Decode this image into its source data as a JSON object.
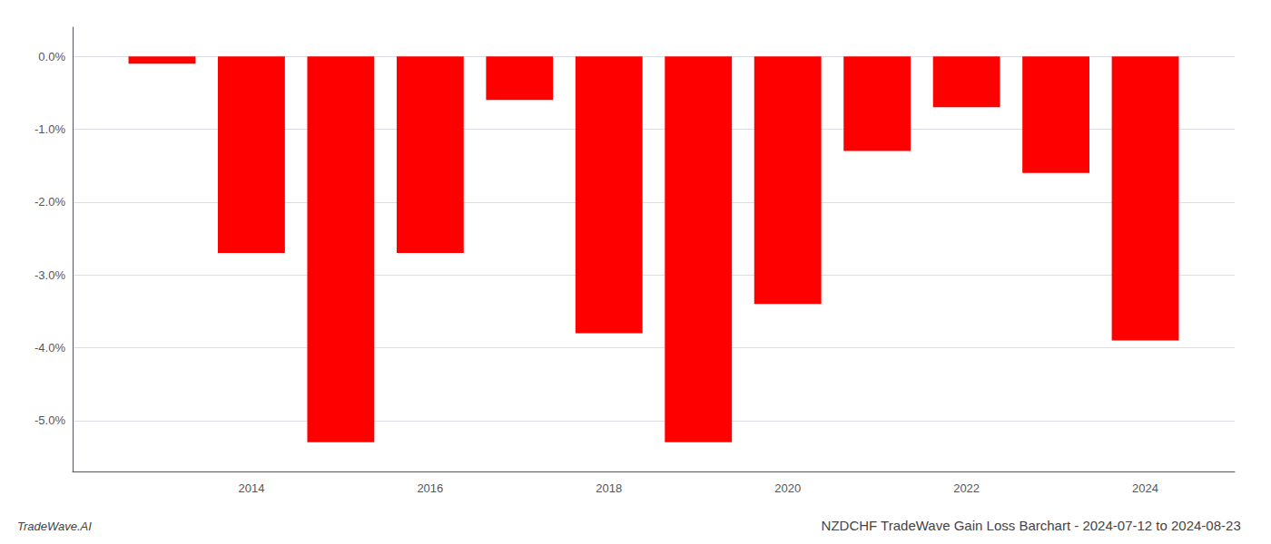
{
  "chart_data": {
    "type": "bar",
    "title": "NZDCHF TradeWave Gain Loss Barchart - 2024-07-12 to 2024-08-23",
    "annotations": [
      "TradeWave.AI"
    ],
    "x": [
      2013,
      2014,
      2015,
      2016,
      2017,
      2018,
      2019,
      2020,
      2021,
      2022,
      2023,
      2024
    ],
    "values": [
      -0.001,
      -0.027,
      -0.053,
      -0.027,
      -0.006,
      -0.038,
      -0.053,
      -0.034,
      -0.013,
      -0.007,
      -0.016,
      -0.039
    ],
    "color": "#ff0000",
    "xlim": [
      2012,
      2025
    ],
    "xticks": [
      2014,
      2016,
      2018,
      2020,
      2022,
      2024
    ],
    "ylim": [
      -0.057,
      0.004
    ],
    "yticks": [
      {
        "value": 0.0,
        "label": "0.0%"
      },
      {
        "value": -0.01,
        "label": "-1.0%"
      },
      {
        "value": -0.02,
        "label": "-2.0%"
      },
      {
        "value": -0.03,
        "label": "-3.0%"
      },
      {
        "value": -0.04,
        "label": "-4.0%"
      },
      {
        "value": -0.05,
        "label": "-5.0%"
      }
    ],
    "grid": true
  }
}
